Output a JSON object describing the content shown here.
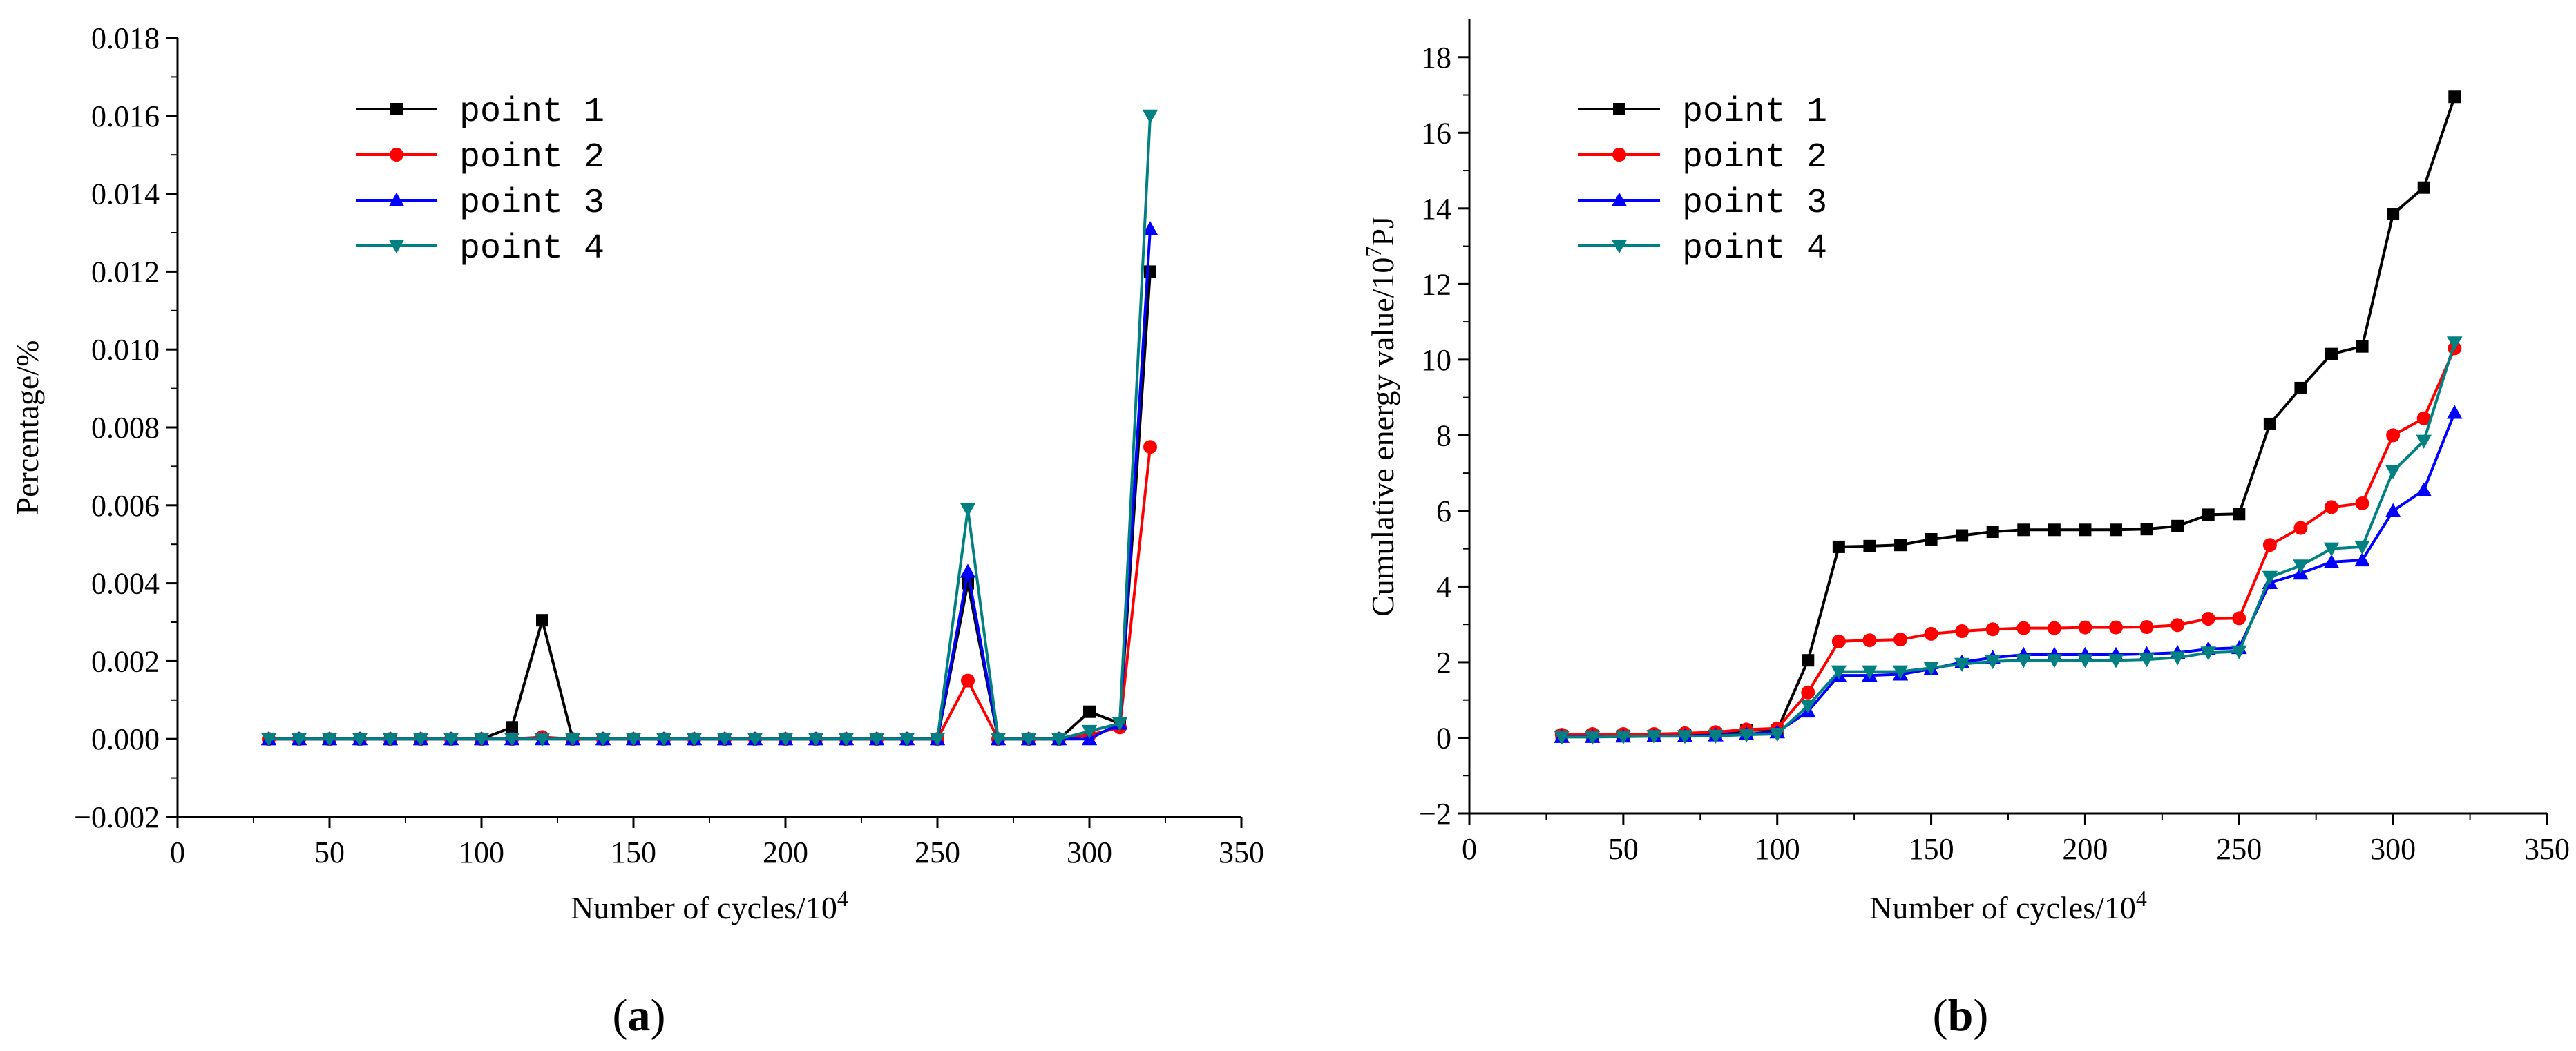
{
  "chart_data": [
    {
      "type": "line",
      "panel_label": {
        "open": "(",
        "letter": "a",
        "close": ")"
      },
      "xlabel": {
        "text": "Number of cycles/10",
        "sup": "4"
      },
      "ylabel": "Percentage/%",
      "xlim": [
        0,
        350
      ],
      "ylim": [
        -0.002,
        0.018
      ],
      "xticks": [
        0,
        50,
        100,
        150,
        200,
        250,
        300,
        350
      ],
      "yticks": [
        -0.002,
        0,
        0.002,
        0.004,
        0.006,
        0.008,
        0.01,
        0.012,
        0.014,
        0.016,
        0.018
      ],
      "xtick_labels": [
        "0",
        "50",
        "100",
        "150",
        "200",
        "250",
        "300",
        "350"
      ],
      "ytick_labels": [
        "−0.002",
        "0.000",
        "0.002",
        "0.004",
        "0.006",
        "0.008",
        "0.010",
        "0.012",
        "0.014",
        "0.016",
        "0.018"
      ],
      "legend_position": "top-left",
      "x": [
        30,
        40,
        50,
        60,
        70,
        80,
        90,
        100,
        110,
        120,
        130,
        140,
        150,
        160,
        170,
        180,
        190,
        200,
        210,
        220,
        230,
        240,
        250,
        260,
        270,
        280,
        290,
        300,
        310,
        320
      ],
      "series": [
        {
          "name": "point 1",
          "color": "#000000",
          "marker": "square",
          "values": [
            0,
            0,
            0,
            0,
            0,
            0,
            0,
            0,
            0.0003,
            0.00305,
            0,
            0,
            0,
            0,
            0,
            0,
            0,
            0,
            0,
            0,
            0,
            0,
            0,
            0.004,
            0,
            0,
            0,
            0.0007,
            0.0004,
            0.012
          ]
        },
        {
          "name": "point 2",
          "color": "#ff0000",
          "marker": "circle",
          "values": [
            0,
            0,
            0,
            0,
            0,
            0,
            0,
            0,
            0,
            5e-05,
            0,
            0,
            0,
            0,
            0,
            0,
            0,
            0,
            0,
            0,
            0,
            0,
            0,
            0.0015,
            0,
            0,
            0,
            0.0001,
            0.0003,
            0.0075
          ]
        },
        {
          "name": "point 3",
          "color": "#0000ff",
          "marker": "triangle-up",
          "values": [
            0,
            0,
            0,
            0,
            0,
            0,
            0,
            0,
            0,
            0,
            0,
            0,
            0,
            0,
            0,
            0,
            0,
            0,
            0,
            0,
            0,
            0,
            0,
            0.0043,
            0,
            0,
            0,
            0,
            0.0004,
            0.0131
          ]
        },
        {
          "name": "point 4",
          "color": "#008080",
          "marker": "triangle-down",
          "values": [
            0,
            0,
            0,
            0,
            0,
            0,
            0,
            0,
            0,
            0,
            0,
            0,
            0,
            0,
            0,
            0,
            0,
            0,
            0,
            0,
            0,
            0,
            0,
            0.0059,
            0,
            0,
            0,
            0.0002,
            0.0004,
            0.016
          ]
        }
      ]
    },
    {
      "type": "line",
      "panel_label": {
        "open": "(",
        "letter": "b",
        "close": ")"
      },
      "xlabel": {
        "text": "Number of cycles/10",
        "sup": "4"
      },
      "ylabel": {
        "text": "Cumulative energy value/10",
        "sup": "7",
        "tail": "PJ"
      },
      "xlim": [
        0,
        350
      ],
      "ylim": [
        -2,
        19
      ],
      "xticks": [
        0,
        50,
        100,
        150,
        200,
        250,
        300,
        350
      ],
      "yticks": [
        -2,
        0,
        2,
        4,
        6,
        8,
        10,
        12,
        14,
        16,
        18
      ],
      "xtick_labels": [
        "0",
        "50",
        "100",
        "150",
        "200",
        "250",
        "300",
        "350"
      ],
      "ytick_labels": [
        "−2",
        "0",
        "2",
        "4",
        "6",
        "8",
        "10",
        "12",
        "14",
        "16",
        "18"
      ],
      "legend_position": "top-left",
      "x": [
        30,
        40,
        50,
        60,
        70,
        80,
        90,
        100,
        110,
        120,
        130,
        140,
        150,
        160,
        170,
        180,
        190,
        200,
        210,
        220,
        230,
        240,
        250,
        260,
        270,
        280,
        290,
        300,
        310,
        320
      ],
      "series": [
        {
          "name": "point 1",
          "color": "#000000",
          "marker": "square",
          "values": [
            0.05,
            0.05,
            0.05,
            0.05,
            0.08,
            0.1,
            0.2,
            0.2,
            2.05,
            5.05,
            5.07,
            5.1,
            5.25,
            5.35,
            5.45,
            5.5,
            5.5,
            5.5,
            5.5,
            5.52,
            5.6,
            5.9,
            5.92,
            8.3,
            9.25,
            10.15,
            10.35,
            13.85,
            14.55,
            16.95
          ]
        },
        {
          "name": "point 2",
          "color": "#ff0000",
          "marker": "circle",
          "values": [
            0.08,
            0.1,
            0.1,
            0.1,
            0.12,
            0.15,
            0.22,
            0.25,
            1.2,
            2.55,
            2.58,
            2.6,
            2.75,
            2.82,
            2.87,
            2.9,
            2.9,
            2.92,
            2.92,
            2.93,
            2.98,
            3.15,
            3.16,
            5.1,
            5.55,
            6.1,
            6.2,
            8.0,
            8.45,
            10.3
          ]
        },
        {
          "name": "point 3",
          "color": "#0000ff",
          "marker": "triangle-up",
          "values": [
            0.03,
            0.03,
            0.04,
            0.05,
            0.05,
            0.07,
            0.1,
            0.15,
            0.7,
            1.65,
            1.65,
            1.68,
            1.82,
            2.0,
            2.12,
            2.2,
            2.2,
            2.2,
            2.2,
            2.22,
            2.25,
            2.35,
            2.38,
            4.1,
            4.35,
            4.65,
            4.7,
            6.0,
            6.55,
            8.6
          ]
        },
        {
          "name": "point 4",
          "color": "#008080",
          "marker": "triangle-down",
          "values": [
            0.02,
            0.02,
            0.03,
            0.04,
            0.04,
            0.05,
            0.08,
            0.1,
            0.85,
            1.75,
            1.75,
            1.75,
            1.85,
            1.95,
            2.02,
            2.05,
            2.05,
            2.05,
            2.05,
            2.07,
            2.12,
            2.25,
            2.28,
            4.25,
            4.55,
            5.0,
            5.05,
            7.05,
            7.85,
            10.45
          ]
        }
      ]
    }
  ]
}
